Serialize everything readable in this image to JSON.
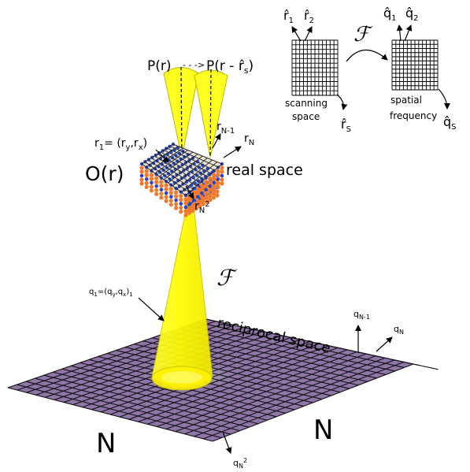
{
  "colors": {
    "beam": "#ffff00",
    "beam_edge": "#d4d400",
    "plane_fill": "#8a6ea3",
    "plane_grid": "#111111",
    "atom_orange": "#f07a2a",
    "atom_blue": "#2747c9",
    "spot": "#a8d7e8"
  },
  "probe": {
    "label_left": "P(r)",
    "arrow": "- - ->",
    "label_right": "P(r - r̂",
    "label_right_sub": "s",
    "label_right_close": ")"
  },
  "object": {
    "label": "O(r)",
    "real_space": "real space",
    "r1": "r",
    "r1_sub": "1",
    "r1_eq": "= (r",
    "r1_y": "y",
    "r1_comma": ",r",
    "r1_x": "x",
    "r1_close": ")",
    "rN1": "r",
    "rN1_sub": "N-1",
    "rN": "r",
    "rN_sub": "N",
    "rN2": "r",
    "rN2_sub": "N",
    "rN2_sup": "2"
  },
  "transform_symbol": "ℱ",
  "reciprocal": {
    "label": "reciprocal space",
    "q1": "q",
    "q1_sub": "1",
    "q1_eq": "=(q",
    "q1_y": "y",
    "q1_comma": ",q",
    "q1_x": "x",
    "q1_close": ")",
    "q1_sub2": "1",
    "qN1": "q",
    "qN1_sub": "N-1",
    "qN": "q",
    "qN_sub": "N",
    "qN2": "q",
    "qN2_sub": "N",
    "qN2_sup": "2",
    "n_left": "N",
    "n_right": "N"
  },
  "inset": {
    "r1": "r̂",
    "r1_sub": "1",
    "r2": "r̂",
    "r2_sub": "2",
    "q1": "q̂",
    "q1_sub": "1",
    "q2": "q̂",
    "q2_sub": "2",
    "scanning": "scanning",
    "space": "space",
    "spatial": "spatial",
    "frequency": "frequency",
    "rs": "r̂",
    "rs_sub": "S",
    "qs": "q̂",
    "qs_sub": "S"
  }
}
